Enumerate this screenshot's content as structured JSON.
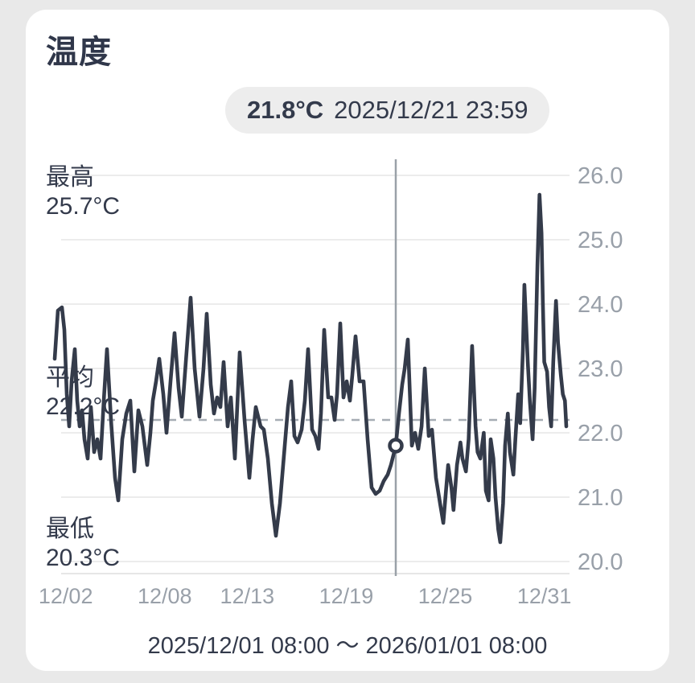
{
  "card": {
    "title": "温度"
  },
  "tooltip": {
    "value": "21.8°C",
    "datetime": "2025/12/21 23:59"
  },
  "footer": {
    "range": "2025/12/01 08:00 ～ 2026/01/01 08:00"
  },
  "colors": {
    "page_bg": "#e9e9e9",
    "card_bg": "#ffffff",
    "text_dark": "#333a4b",
    "axis_text": "#99a0a9",
    "grid": "#e5e5e5",
    "axis_baseline": "#dddddd",
    "average_dash": "#a6acb4",
    "cursor_line": "#9aa1a8",
    "series_line": "#343b4a",
    "marker_fill": "#ffffff",
    "tooltip_bg": "#ededed"
  },
  "chart_data": {
    "type": "line",
    "title": "温度",
    "unit": "°C",
    "ylim": [
      20.0,
      26.0
    ],
    "y_ticks": [
      "26.0",
      "25.0",
      "24.0",
      "23.0",
      "22.0",
      "21.0",
      "20.0"
    ],
    "grid": true,
    "x_range": {
      "start": "2025/12/01 08:00",
      "end": "2026/01/01 08:00",
      "hours": 744
    },
    "x_ticks": [
      {
        "label": "12/02",
        "hours": 16
      },
      {
        "label": "12/08",
        "hours": 160
      },
      {
        "label": "12/13",
        "hours": 280
      },
      {
        "label": "12/19",
        "hours": 424
      },
      {
        "label": "12/25",
        "hours": 568
      },
      {
        "label": "12/31",
        "hours": 712
      }
    ],
    "stats": {
      "max": {
        "label": "最高",
        "value": "25.7°C",
        "num": 25.7
      },
      "avg": {
        "label": "平均",
        "value": "22.2°C",
        "num": 22.2
      },
      "min": {
        "label": "最低",
        "value": "20.3°C",
        "num": 20.3
      }
    },
    "average_line": 22.2,
    "cursor": {
      "hours": 496,
      "value": 21.8,
      "datetime": "2025/12/21 23:59"
    },
    "series": {
      "name": "温度",
      "points": [
        [
          0,
          23.15
        ],
        [
          4.7,
          23.9
        ],
        [
          10.5,
          23.95
        ],
        [
          14,
          23.6
        ],
        [
          17.5,
          22.6
        ],
        [
          21.1,
          22.1
        ],
        [
          24.6,
          22.8
        ],
        [
          29.2,
          23.3
        ],
        [
          32.8,
          22.5
        ],
        [
          36.3,
          22.1
        ],
        [
          39.8,
          22.35
        ],
        [
          43.3,
          21.9
        ],
        [
          48,
          21.6
        ],
        [
          52.6,
          22.4
        ],
        [
          57.3,
          21.7
        ],
        [
          62,
          21.9
        ],
        [
          66.7,
          21.6
        ],
        [
          71.4,
          22.5
        ],
        [
          76,
          23.3
        ],
        [
          81.9,
          22.2
        ],
        [
          87.7,
          21.3
        ],
        [
          92.4,
          20.95
        ],
        [
          98.3,
          21.9
        ],
        [
          104.1,
          22.3
        ],
        [
          110,
          22.5
        ],
        [
          115.8,
          21.4
        ],
        [
          121.7,
          22.35
        ],
        [
          127.5,
          22.1
        ],
        [
          131,
          21.8
        ],
        [
          134.5,
          21.5
        ],
        [
          139.2,
          22
        ],
        [
          142.7,
          22.5
        ],
        [
          147.4,
          22.8
        ],
        [
          152.1,
          23.15
        ],
        [
          157.9,
          22.6
        ],
        [
          162.6,
          22
        ],
        [
          168.4,
          22.8
        ],
        [
          174.3,
          23.55
        ],
        [
          180.1,
          22.7
        ],
        [
          184.8,
          22.25
        ],
        [
          190.7,
          23.1
        ],
        [
          197.7,
          24.1
        ],
        [
          203.5,
          23
        ],
        [
          210.6,
          22.25
        ],
        [
          216.4,
          23
        ],
        [
          221.1,
          23.85
        ],
        [
          226.9,
          22.75
        ],
        [
          231.6,
          22.3
        ],
        [
          236.3,
          22.55
        ],
        [
          241,
          22.4
        ],
        [
          245.7,
          23.1
        ],
        [
          251.5,
          22.1
        ],
        [
          256.2,
          22.55
        ],
        [
          262,
          21.6
        ],
        [
          269,
          23.25
        ],
        [
          276.1,
          22.2
        ],
        [
          283.1,
          21.3
        ],
        [
          287.8,
          21.9
        ],
        [
          292.4,
          22.4
        ],
        [
          299.5,
          22.1
        ],
        [
          304.1,
          22.05
        ],
        [
          310,
          21.6
        ],
        [
          315.8,
          20.9
        ],
        [
          321.7,
          20.4
        ],
        [
          327.5,
          20.9
        ],
        [
          334.6,
          21.8
        ],
        [
          339.2,
          22.4
        ],
        [
          343.9,
          22.8
        ],
        [
          348.6,
          21.95
        ],
        [
          353.3,
          21.85
        ],
        [
          359.1,
          22.05
        ],
        [
          363.8,
          22.5
        ],
        [
          368.5,
          23.3
        ],
        [
          374.3,
          22.05
        ],
        [
          379,
          21.95
        ],
        [
          383.7,
          21.75
        ],
        [
          387.2,
          22.3
        ],
        [
          391.9,
          23.6
        ],
        [
          397.7,
          22.55
        ],
        [
          402.4,
          22.55
        ],
        [
          407.1,
          22.2
        ],
        [
          410.6,
          22.6
        ],
        [
          415.3,
          23.7
        ],
        [
          420,
          22.55
        ],
        [
          424.6,
          22.8
        ],
        [
          429.3,
          22.5
        ],
        [
          432.8,
          22.9
        ],
        [
          437.5,
          23.5
        ],
        [
          443.4,
          22.8
        ],
        [
          449.2,
          22.8
        ],
        [
          455.1,
          21.9
        ],
        [
          460.9,
          21.15
        ],
        [
          466.8,
          21.05
        ],
        [
          472.6,
          21.1
        ],
        [
          478.5,
          21.25
        ],
        [
          484.3,
          21.35
        ],
        [
          489,
          21.5
        ],
        [
          496,
          21.8
        ],
        [
          500.7,
          22.3
        ],
        [
          505.4,
          22.75
        ],
        [
          509,
          23
        ],
        [
          513.6,
          23.45
        ],
        [
          519.4,
          21.8
        ],
        [
          524.1,
          22
        ],
        [
          528.8,
          21.75
        ],
        [
          533.5,
          22.1
        ],
        [
          538.2,
          23
        ],
        [
          544,
          21.95
        ],
        [
          548.7,
          22.05
        ],
        [
          554.5,
          21.3
        ],
        [
          560.4,
          20.9
        ],
        [
          565.1,
          20.6
        ],
        [
          572.1,
          21.5
        ],
        [
          577,
          21.15
        ],
        [
          580,
          20.8
        ],
        [
          585,
          21.5
        ],
        [
          590,
          21.85
        ],
        [
          593,
          21.6
        ],
        [
          598,
          21.4
        ],
        [
          602,
          21.9
        ],
        [
          607,
          23.35
        ],
        [
          612,
          22.1
        ],
        [
          615,
          21.7
        ],
        [
          619,
          21.6
        ],
        [
          624,
          22
        ],
        [
          627,
          21.1
        ],
        [
          631,
          20.95
        ],
        [
          634,
          21.9
        ],
        [
          638,
          21.6
        ],
        [
          641,
          21
        ],
        [
          645,
          20.5
        ],
        [
          648,
          20.3
        ],
        [
          652,
          20.9
        ],
        [
          655,
          21.8
        ],
        [
          659,
          22.3
        ],
        [
          662,
          21.7
        ],
        [
          667,
          21.35
        ],
        [
          670,
          21.9
        ],
        [
          674,
          22.6
        ],
        [
          677,
          22.15
        ],
        [
          681,
          23.3
        ],
        [
          683,
          24.3
        ],
        [
          686,
          23.6
        ],
        [
          688,
          23.1
        ],
        [
          691,
          22.5
        ],
        [
          695,
          21.9
        ],
        [
          698,
          22.7
        ],
        [
          702,
          24.6
        ],
        [
          705,
          25.7
        ],
        [
          708,
          25.1
        ],
        [
          710,
          24
        ],
        [
          712,
          23.1
        ],
        [
          716,
          22.95
        ],
        [
          719,
          22.4
        ],
        [
          722,
          22.1
        ],
        [
          725,
          23.1
        ],
        [
          729,
          24.05
        ],
        [
          732,
          23.4
        ],
        [
          736,
          22.9
        ],
        [
          739,
          22.6
        ],
        [
          742,
          22.5
        ],
        [
          744,
          22.1
        ]
      ]
    }
  }
}
